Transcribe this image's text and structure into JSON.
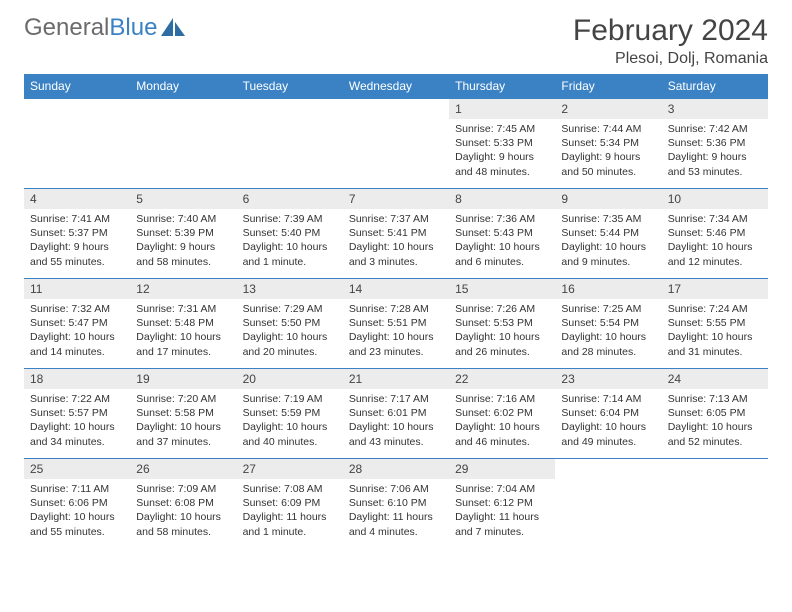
{
  "brand": {
    "part1": "General",
    "part2": "Blue"
  },
  "title": "February 2024",
  "location": "Plesoi, Dolj, Romania",
  "colors": {
    "header_bg": "#3b82c4",
    "header_text": "#ffffff",
    "daynum_bg": "#ececec",
    "row_border": "#3b82c4",
    "text": "#333333",
    "logo_gray": "#6b6b6b"
  },
  "dayHeaders": [
    "Sunday",
    "Monday",
    "Tuesday",
    "Wednesday",
    "Thursday",
    "Friday",
    "Saturday"
  ],
  "weeks": [
    [
      {
        "n": "",
        "sr": "",
        "ss": "",
        "dl": ""
      },
      {
        "n": "",
        "sr": "",
        "ss": "",
        "dl": ""
      },
      {
        "n": "",
        "sr": "",
        "ss": "",
        "dl": ""
      },
      {
        "n": "",
        "sr": "",
        "ss": "",
        "dl": ""
      },
      {
        "n": "1",
        "sr": "Sunrise: 7:45 AM",
        "ss": "Sunset: 5:33 PM",
        "dl": "Daylight: 9 hours and 48 minutes."
      },
      {
        "n": "2",
        "sr": "Sunrise: 7:44 AM",
        "ss": "Sunset: 5:34 PM",
        "dl": "Daylight: 9 hours and 50 minutes."
      },
      {
        "n": "3",
        "sr": "Sunrise: 7:42 AM",
        "ss": "Sunset: 5:36 PM",
        "dl": "Daylight: 9 hours and 53 minutes."
      }
    ],
    [
      {
        "n": "4",
        "sr": "Sunrise: 7:41 AM",
        "ss": "Sunset: 5:37 PM",
        "dl": "Daylight: 9 hours and 55 minutes."
      },
      {
        "n": "5",
        "sr": "Sunrise: 7:40 AM",
        "ss": "Sunset: 5:39 PM",
        "dl": "Daylight: 9 hours and 58 minutes."
      },
      {
        "n": "6",
        "sr": "Sunrise: 7:39 AM",
        "ss": "Sunset: 5:40 PM",
        "dl": "Daylight: 10 hours and 1 minute."
      },
      {
        "n": "7",
        "sr": "Sunrise: 7:37 AM",
        "ss": "Sunset: 5:41 PM",
        "dl": "Daylight: 10 hours and 3 minutes."
      },
      {
        "n": "8",
        "sr": "Sunrise: 7:36 AM",
        "ss": "Sunset: 5:43 PM",
        "dl": "Daylight: 10 hours and 6 minutes."
      },
      {
        "n": "9",
        "sr": "Sunrise: 7:35 AM",
        "ss": "Sunset: 5:44 PM",
        "dl": "Daylight: 10 hours and 9 minutes."
      },
      {
        "n": "10",
        "sr": "Sunrise: 7:34 AM",
        "ss": "Sunset: 5:46 PM",
        "dl": "Daylight: 10 hours and 12 minutes."
      }
    ],
    [
      {
        "n": "11",
        "sr": "Sunrise: 7:32 AM",
        "ss": "Sunset: 5:47 PM",
        "dl": "Daylight: 10 hours and 14 minutes."
      },
      {
        "n": "12",
        "sr": "Sunrise: 7:31 AM",
        "ss": "Sunset: 5:48 PM",
        "dl": "Daylight: 10 hours and 17 minutes."
      },
      {
        "n": "13",
        "sr": "Sunrise: 7:29 AM",
        "ss": "Sunset: 5:50 PM",
        "dl": "Daylight: 10 hours and 20 minutes."
      },
      {
        "n": "14",
        "sr": "Sunrise: 7:28 AM",
        "ss": "Sunset: 5:51 PM",
        "dl": "Daylight: 10 hours and 23 minutes."
      },
      {
        "n": "15",
        "sr": "Sunrise: 7:26 AM",
        "ss": "Sunset: 5:53 PM",
        "dl": "Daylight: 10 hours and 26 minutes."
      },
      {
        "n": "16",
        "sr": "Sunrise: 7:25 AM",
        "ss": "Sunset: 5:54 PM",
        "dl": "Daylight: 10 hours and 28 minutes."
      },
      {
        "n": "17",
        "sr": "Sunrise: 7:24 AM",
        "ss": "Sunset: 5:55 PM",
        "dl": "Daylight: 10 hours and 31 minutes."
      }
    ],
    [
      {
        "n": "18",
        "sr": "Sunrise: 7:22 AM",
        "ss": "Sunset: 5:57 PM",
        "dl": "Daylight: 10 hours and 34 minutes."
      },
      {
        "n": "19",
        "sr": "Sunrise: 7:20 AM",
        "ss": "Sunset: 5:58 PM",
        "dl": "Daylight: 10 hours and 37 minutes."
      },
      {
        "n": "20",
        "sr": "Sunrise: 7:19 AM",
        "ss": "Sunset: 5:59 PM",
        "dl": "Daylight: 10 hours and 40 minutes."
      },
      {
        "n": "21",
        "sr": "Sunrise: 7:17 AM",
        "ss": "Sunset: 6:01 PM",
        "dl": "Daylight: 10 hours and 43 minutes."
      },
      {
        "n": "22",
        "sr": "Sunrise: 7:16 AM",
        "ss": "Sunset: 6:02 PM",
        "dl": "Daylight: 10 hours and 46 minutes."
      },
      {
        "n": "23",
        "sr": "Sunrise: 7:14 AM",
        "ss": "Sunset: 6:04 PM",
        "dl": "Daylight: 10 hours and 49 minutes."
      },
      {
        "n": "24",
        "sr": "Sunrise: 7:13 AM",
        "ss": "Sunset: 6:05 PM",
        "dl": "Daylight: 10 hours and 52 minutes."
      }
    ],
    [
      {
        "n": "25",
        "sr": "Sunrise: 7:11 AM",
        "ss": "Sunset: 6:06 PM",
        "dl": "Daylight: 10 hours and 55 minutes."
      },
      {
        "n": "26",
        "sr": "Sunrise: 7:09 AM",
        "ss": "Sunset: 6:08 PM",
        "dl": "Daylight: 10 hours and 58 minutes."
      },
      {
        "n": "27",
        "sr": "Sunrise: 7:08 AM",
        "ss": "Sunset: 6:09 PM",
        "dl": "Daylight: 11 hours and 1 minute."
      },
      {
        "n": "28",
        "sr": "Sunrise: 7:06 AM",
        "ss": "Sunset: 6:10 PM",
        "dl": "Daylight: 11 hours and 4 minutes."
      },
      {
        "n": "29",
        "sr": "Sunrise: 7:04 AM",
        "ss": "Sunset: 6:12 PM",
        "dl": "Daylight: 11 hours and 7 minutes."
      },
      {
        "n": "",
        "sr": "",
        "ss": "",
        "dl": ""
      },
      {
        "n": "",
        "sr": "",
        "ss": "",
        "dl": ""
      }
    ]
  ]
}
